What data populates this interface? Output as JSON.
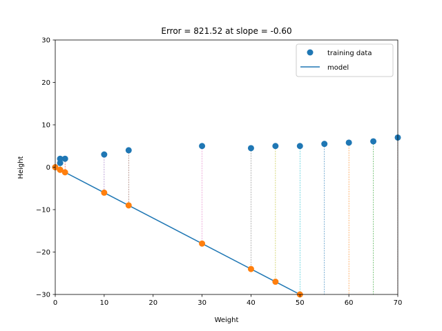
{
  "chart_data": {
    "type": "scatter",
    "title": "Error = 821.52 at slope = -0.60",
    "xlabel": "Weight",
    "ylabel": "Height",
    "xlim": [
      0,
      70
    ],
    "ylim": [
      -30,
      30
    ],
    "xticks": [
      0,
      10,
      20,
      30,
      40,
      50,
      60,
      70
    ],
    "yticks": [
      -30,
      -20,
      -10,
      0,
      10,
      20,
      30
    ],
    "tick_labels": {
      "x": [
        "0",
        "10",
        "20",
        "30",
        "40",
        "50",
        "60",
        "70"
      ],
      "y": [
        "−30",
        "−20",
        "−10",
        "0",
        "10",
        "20",
        "30"
      ]
    },
    "grid": false,
    "legend": {
      "placement": "upper right",
      "entries": [
        "training data",
        "model"
      ]
    },
    "series": [
      {
        "name": "training data",
        "kind": "scatter",
        "color": "#1f77b4",
        "x": [
          0,
          1,
          1,
          2,
          10,
          15,
          30,
          40,
          45,
          50,
          55,
          60,
          65,
          70
        ],
        "y": [
          0,
          2,
          1,
          2,
          3,
          4,
          5,
          4.5,
          5,
          5,
          5.5,
          5.8,
          6.1,
          7
        ]
      },
      {
        "name": "model",
        "kind": "line",
        "color": "#1f77b4",
        "slope": -0.6,
        "x": [
          0,
          70
        ],
        "y": [
          0,
          -42
        ]
      },
      {
        "kind": "scatter",
        "color": "#ff7f0e",
        "x": [
          0,
          1,
          1,
          2,
          10,
          15,
          30,
          40,
          45,
          50
        ],
        "y": [
          0,
          -0.6,
          -0.6,
          -1.2,
          -6,
          -9,
          -18,
          -24,
          -27,
          -30
        ]
      }
    ],
    "residual_colors": [
      "#1f77b4",
      "#ff7f0e",
      "#2ca02c",
      "#d62728",
      "#9467bd",
      "#8c564b",
      "#e377c2",
      "#7f7f7f",
      "#bcbd22",
      "#17becf"
    ]
  }
}
